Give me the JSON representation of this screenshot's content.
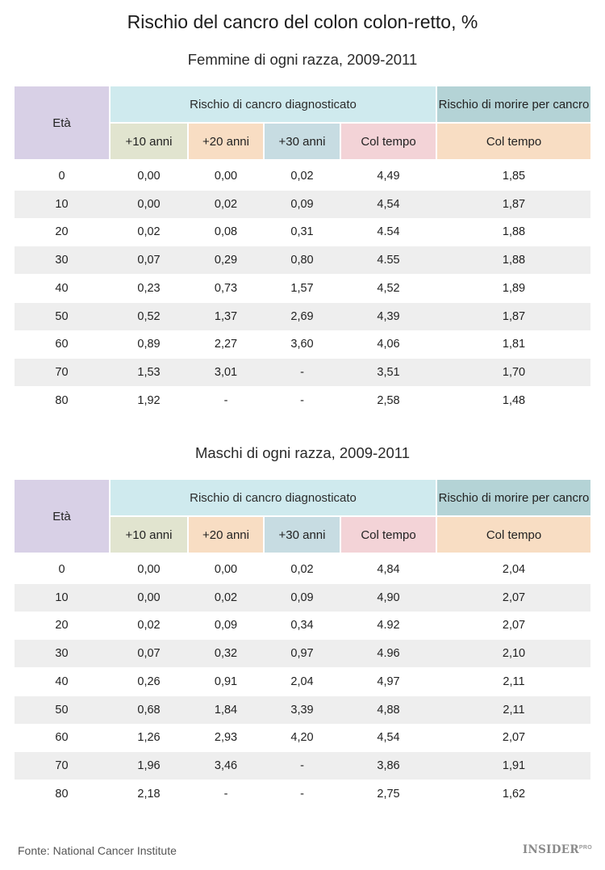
{
  "title": "Rischio del cancro del colon colon-retto, %",
  "headers": {
    "eta": "Età",
    "diag": "Rischio di cancro diagnosticato",
    "morire": "Rischio di morire per cancro",
    "c10": "+10 anni",
    "c20": "+20 anni",
    "c30": "+30 anni",
    "colTempo": "Col tempo",
    "colTempoMorire": "Col tempo"
  },
  "tables": [
    {
      "subtitle": "Femmine di ogni razza, 2009-2011",
      "rows": [
        [
          "0",
          "0,00",
          "0,00",
          "0,02",
          "4,49",
          "1,85"
        ],
        [
          "10",
          "0,00",
          "0,02",
          "0,09",
          "4,54",
          "1,87"
        ],
        [
          "20",
          "0,02",
          "0,08",
          "0,31",
          "4.54",
          "1,88"
        ],
        [
          "30",
          "0,07",
          "0,29",
          "0,80",
          "4.55",
          "1,88"
        ],
        [
          "40",
          "0,23",
          "0,73",
          "1,57",
          "4,52",
          "1,89"
        ],
        [
          "50",
          "0,52",
          "1,37",
          "2,69",
          "4,39",
          "1,87"
        ],
        [
          "60",
          "0,89",
          "2,27",
          "3,60",
          "4,06",
          "1,81"
        ],
        [
          "70",
          "1,53",
          "3,01",
          "-",
          "3,51",
          "1,70"
        ],
        [
          "80",
          "1,92",
          "-",
          "-",
          "2,58",
          "1,48"
        ]
      ]
    },
    {
      "subtitle": "Maschi di ogni razza, 2009-2011",
      "rows": [
        [
          "0",
          "0,00",
          "0,00",
          "0,02",
          "4,84",
          "2,04"
        ],
        [
          "10",
          "0,00",
          "0,02",
          "0,09",
          "4,90",
          "2,07"
        ],
        [
          "20",
          "0,02",
          "0,09",
          "0,34",
          "4.92",
          "2,07"
        ],
        [
          "30",
          "0,07",
          "0,32",
          "0,97",
          "4.96",
          "2,10"
        ],
        [
          "40",
          "0,26",
          "0,91",
          "2,04",
          "4,97",
          "2,11"
        ],
        [
          "50",
          "0,68",
          "1,84",
          "3,39",
          "4,88",
          "2,11"
        ],
        [
          "60",
          "1,26",
          "2,93",
          "4,20",
          "4,54",
          "2,07"
        ],
        [
          "70",
          "1,96",
          "3,46",
          "-",
          "3,86",
          "1,91"
        ],
        [
          "80",
          "2,18",
          "-",
          "-",
          "2,75",
          "1,62"
        ]
      ]
    }
  ],
  "footer": "Fonte: National Cancer Institute",
  "logo": {
    "main": "INSIDER",
    "sup": "PRO"
  }
}
